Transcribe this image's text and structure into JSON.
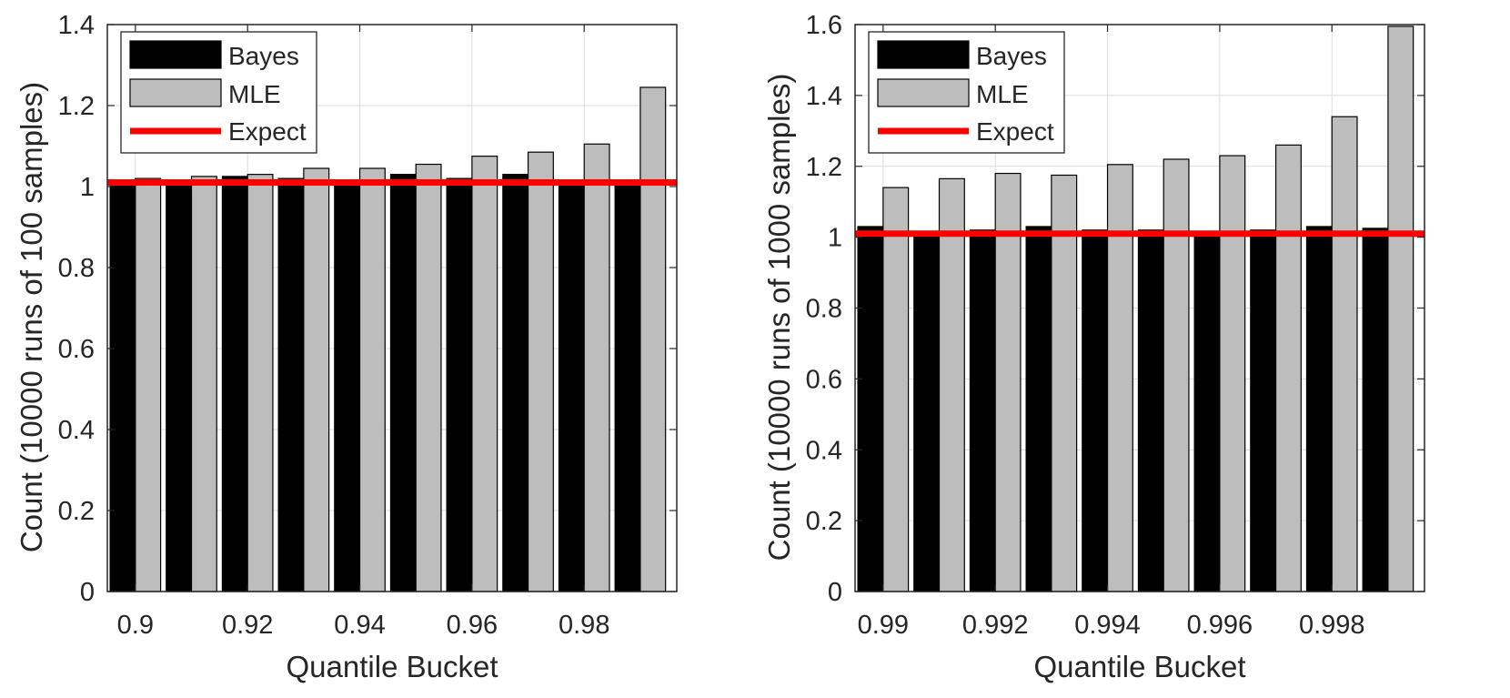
{
  "chart_data": [
    {
      "type": "bar",
      "title": "",
      "xlabel": "Quantile Bucket",
      "ylabel": "Count (10000 runs of 100 samples)",
      "ylim": [
        0,
        1.4
      ],
      "yticks": [
        "0",
        "0.2",
        "0.4",
        "0.6",
        "0.8",
        "1",
        "1.2",
        "1.4"
      ],
      "ytick_values": [
        0,
        0.2,
        0.4,
        0.6,
        0.8,
        1.0,
        1.2,
        1.4
      ],
      "xlim": [
        0.895,
        0.9965
      ],
      "xticks": [
        "0.9",
        "0.92",
        "0.94",
        "0.96",
        "0.98"
      ],
      "xtick_values": [
        0.9,
        0.92,
        0.94,
        0.96,
        0.98
      ],
      "bucket_width": 0.01,
      "categories": [
        0.9,
        0.91,
        0.92,
        0.93,
        0.94,
        0.95,
        0.96,
        0.97,
        0.98,
        0.99
      ],
      "series": [
        {
          "name": "Bayes",
          "color": "#000000",
          "values": [
            1.01,
            1.01,
            1.025,
            1.02,
            1.015,
            1.03,
            1.02,
            1.03,
            1.01,
            1.01
          ]
        },
        {
          "name": "MLE",
          "color": "#bdbdbd",
          "values": [
            1.02,
            1.025,
            1.03,
            1.045,
            1.045,
            1.055,
            1.075,
            1.085,
            1.105,
            1.245
          ]
        }
      ],
      "expect": {
        "name": "Expect",
        "value": 1.01,
        "color": "#ff0000"
      },
      "legend_position": "top-left",
      "grid": true
    },
    {
      "type": "bar",
      "title": "",
      "xlabel": "Quantile Bucket",
      "ylabel": "Count (10000 runs of 1000 samples)",
      "ylim": [
        0,
        1.6
      ],
      "yticks": [
        "0",
        "0.2",
        "0.4",
        "0.6",
        "0.8",
        "1",
        "1.2",
        "1.4",
        "1.6"
      ],
      "ytick_values": [
        0,
        0.2,
        0.4,
        0.6,
        0.8,
        1.0,
        1.2,
        1.4,
        1.6
      ],
      "xlim": [
        0.9895,
        0.99965
      ],
      "xticks": [
        "0.99",
        "0.992",
        "0.994",
        "0.996",
        "0.998"
      ],
      "xtick_values": [
        0.99,
        0.992,
        0.994,
        0.996,
        0.998
      ],
      "bucket_width": 0.001,
      "categories": [
        0.99,
        0.991,
        0.992,
        0.993,
        0.994,
        0.995,
        0.996,
        0.997,
        0.998,
        0.999
      ],
      "series": [
        {
          "name": "Bayes",
          "color": "#000000",
          "values": [
            1.03,
            1.01,
            1.02,
            1.03,
            1.02,
            1.02,
            1.01,
            1.02,
            1.03,
            1.025
          ]
        },
        {
          "name": "MLE",
          "color": "#bdbdbd",
          "values": [
            1.14,
            1.165,
            1.18,
            1.175,
            1.205,
            1.22,
            1.23,
            1.26,
            1.34,
            1.595
          ]
        }
      ],
      "expect": {
        "name": "Expect",
        "value": 1.01,
        "color": "#ff0000"
      },
      "legend_position": "top-left",
      "grid": true
    }
  ]
}
